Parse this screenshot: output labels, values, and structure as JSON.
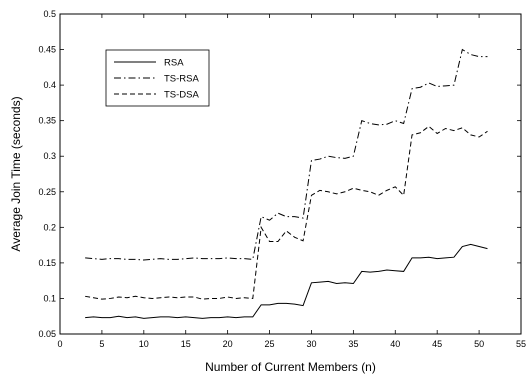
{
  "chart_data": {
    "type": "line",
    "title": "",
    "xlabel": "Number of Current Members (n)",
    "ylabel": "Average Join Time (seconds)",
    "xlim": [
      0,
      55
    ],
    "ylim": [
      0.05,
      0.5
    ],
    "xticks": [
      0,
      5,
      10,
      15,
      20,
      25,
      30,
      35,
      40,
      45,
      50,
      55
    ],
    "yticks": [
      0.05,
      0.1,
      0.15,
      0.2,
      0.25,
      0.3,
      0.35,
      0.4,
      0.45,
      0.5
    ],
    "grid": false,
    "legend_position": "top-left",
    "x": [
      3,
      4,
      5,
      6,
      7,
      8,
      9,
      10,
      11,
      12,
      13,
      14,
      15,
      16,
      17,
      18,
      19,
      20,
      21,
      22,
      23,
      24,
      25,
      26,
      27,
      28,
      29,
      30,
      31,
      32,
      33,
      34,
      35,
      36,
      37,
      38,
      39,
      40,
      41,
      42,
      43,
      44,
      45,
      46,
      47,
      48,
      49,
      50,
      51
    ],
    "series": [
      {
        "name": "RSA",
        "dash": "solid",
        "values": [
          0.073,
          0.074,
          0.073,
          0.073,
          0.075,
          0.073,
          0.074,
          0.072,
          0.073,
          0.074,
          0.074,
          0.073,
          0.074,
          0.073,
          0.072,
          0.073,
          0.073,
          0.074,
          0.073,
          0.074,
          0.074,
          0.091,
          0.091,
          0.093,
          0.093,
          0.092,
          0.09,
          0.122,
          0.123,
          0.124,
          0.121,
          0.122,
          0.121,
          0.138,
          0.137,
          0.138,
          0.14,
          0.139,
          0.138,
          0.157,
          0.157,
          0.158,
          0.156,
          0.157,
          0.158,
          0.173,
          0.176,
          0.173,
          0.17
        ]
      },
      {
        "name": "TS-RSA",
        "dash": "dashdot",
        "values": [
          0.157,
          0.156,
          0.155,
          0.156,
          0.156,
          0.155,
          0.155,
          0.154,
          0.155,
          0.156,
          0.155,
          0.155,
          0.156,
          0.157,
          0.156,
          0.156,
          0.156,
          0.157,
          0.156,
          0.156,
          0.155,
          0.215,
          0.21,
          0.22,
          0.215,
          0.215,
          0.213,
          0.294,
          0.296,
          0.3,
          0.298,
          0.297,
          0.3,
          0.35,
          0.346,
          0.344,
          0.345,
          0.35,
          0.346,
          0.395,
          0.397,
          0.403,
          0.398,
          0.399,
          0.4,
          0.45,
          0.443,
          0.44,
          0.44
        ]
      },
      {
        "name": "TS-DSA",
        "dash": "dashed",
        "values": [
          0.103,
          0.101,
          0.099,
          0.1,
          0.102,
          0.101,
          0.103,
          0.101,
          0.1,
          0.101,
          0.102,
          0.101,
          0.102,
          0.102,
          0.099,
          0.1,
          0.1,
          0.102,
          0.1,
          0.101,
          0.1,
          0.2,
          0.18,
          0.18,
          0.195,
          0.186,
          0.181,
          0.245,
          0.252,
          0.25,
          0.247,
          0.25,
          0.255,
          0.252,
          0.25,
          0.245,
          0.252,
          0.257,
          0.245,
          0.33,
          0.333,
          0.342,
          0.332,
          0.339,
          0.336,
          0.34,
          0.33,
          0.327,
          0.335
        ]
      }
    ]
  }
}
